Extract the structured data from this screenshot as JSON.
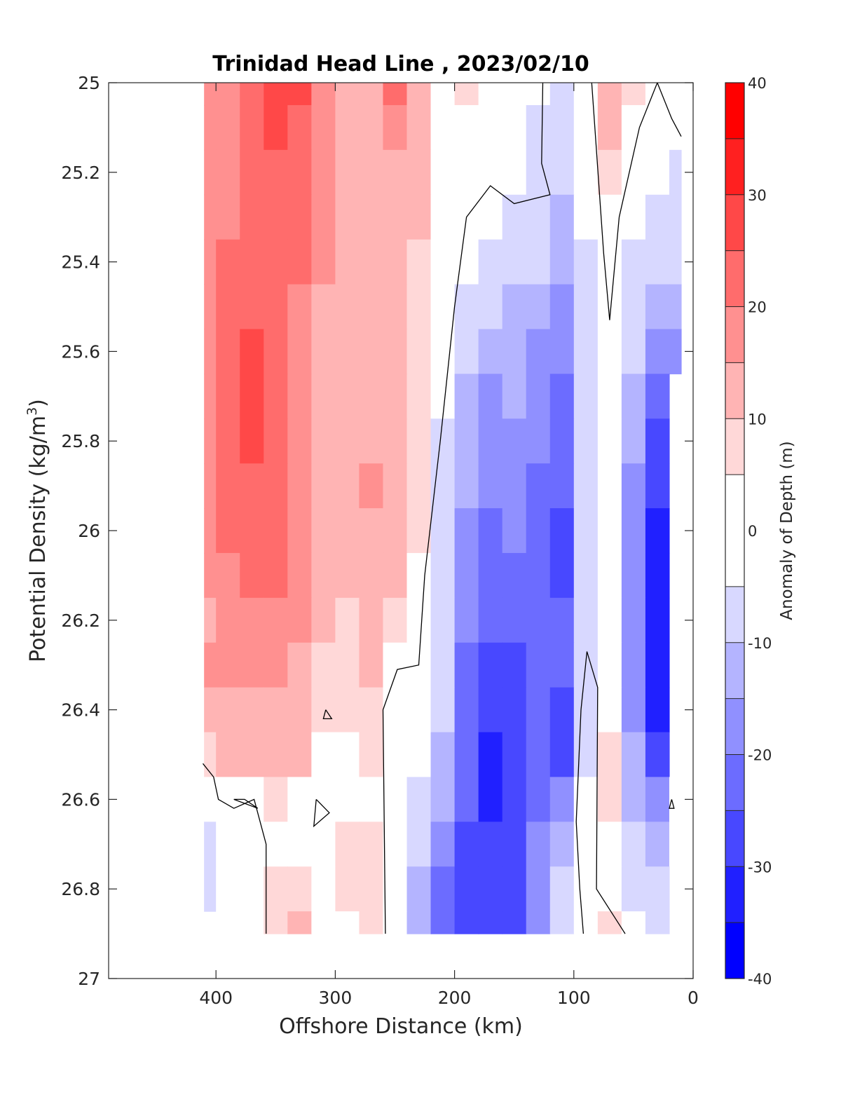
{
  "chart_data": {
    "type": "heatmap",
    "title": "Trinidad Head Line , 2023/02/10",
    "xlabel": "Offshore Distance (km)",
    "ylabel_base": "Potential Density (kg/m",
    "ylabel_sup": "3",
    "ylabel_end": ")",
    "colorbar_label": "Anomaly of Depth (m)",
    "x_range": [
      490,
      0
    ],
    "x_reversed": true,
    "y_range": [
      25,
      27
    ],
    "y_reversed": true,
    "x_ticks": [
      400,
      300,
      200,
      100,
      0
    ],
    "y_ticks": [
      25,
      25.2,
      25.4,
      25.6,
      25.8,
      26,
      26.2,
      26.4,
      26.6,
      26.8,
      27
    ],
    "colorbar_ticks": [
      40,
      30,
      20,
      10,
      0,
      -10,
      -20,
      -30,
      -40
    ],
    "colorbar_levels": [
      -40,
      -35,
      -30,
      -25,
      -20,
      -15,
      -10,
      -5,
      5,
      10,
      15,
      20,
      25,
      30,
      35,
      40
    ],
    "colorbar_colors": [
      "#0000ff",
      "#2020ff",
      "#4848ff",
      "#6c6cff",
      "#9090ff",
      "#b4b4ff",
      "#d8d8ff",
      "#ffffff",
      "#ffd8d8",
      "#ffb4b4",
      "#ff9090",
      "#ff6c6c",
      "#ff4848",
      "#ff2020",
      "#ff0000"
    ],
    "grid": false,
    "data_extent": {
      "x": [
        410,
        10
      ],
      "y": [
        25,
        26.9
      ]
    },
    "x": [
      410,
      390,
      370,
      350,
      330,
      310,
      290,
      270,
      250,
      230,
      210,
      190,
      170,
      150,
      130,
      110,
      90,
      70,
      50,
      30,
      10
    ],
    "y": [
      25.0,
      25.1,
      25.2,
      25.3,
      25.4,
      25.5,
      25.6,
      25.7,
      25.8,
      25.9,
      26.0,
      26.1,
      26.2,
      26.3,
      26.4,
      26.5,
      26.6,
      26.7,
      26.8,
      26.9
    ],
    "z": [
      [
        16,
        18,
        22,
        28,
        26,
        18,
        12,
        14,
        20,
        14,
        4,
        6,
        4,
        2,
        -5,
        -8,
        -2,
        14,
        6,
        2,
        null
      ],
      [
        16,
        18,
        22,
        26,
        24,
        18,
        12,
        14,
        18,
        14,
        4,
        4,
        4,
        -2,
        -6,
        -8,
        -2,
        12,
        4,
        -2,
        null
      ],
      [
        16,
        18,
        22,
        24,
        22,
        16,
        12,
        12,
        14,
        10,
        4,
        2,
        -2,
        -4,
        -6,
        -10,
        -2,
        8,
        2,
        -4,
        -6
      ],
      [
        16,
        18,
        20,
        22,
        20,
        16,
        12,
        14,
        12,
        10,
        4,
        -2,
        -4,
        -6,
        -8,
        -12,
        -4,
        4,
        -2,
        -6,
        -8
      ],
      [
        16,
        20,
        22,
        22,
        20,
        16,
        12,
        12,
        12,
        8,
        2,
        -4,
        -8,
        -10,
        -10,
        -14,
        -6,
        2,
        -6,
        -10,
        -10
      ],
      [
        16,
        22,
        24,
        22,
        18,
        14,
        12,
        12,
        12,
        8,
        -2,
        -6,
        -10,
        -12,
        -14,
        -16,
        -6,
        2,
        -8,
        -14,
        -12
      ],
      [
        16,
        22,
        26,
        22,
        18,
        12,
        10,
        12,
        12,
        6,
        -4,
        -10,
        -14,
        -12,
        -16,
        -20,
        -6,
        2,
        -10,
        -18,
        -16
      ],
      [
        16,
        22,
        26,
        22,
        18,
        12,
        10,
        12,
        12,
        6,
        -4,
        -12,
        -16,
        -14,
        -18,
        -22,
        -6,
        2,
        -12,
        -24,
        null
      ],
      [
        16,
        22,
        26,
        22,
        18,
        14,
        12,
        14,
        12,
        6,
        -6,
        -12,
        -18,
        -16,
        -20,
        -24,
        -6,
        2,
        -14,
        -28,
        null
      ],
      [
        16,
        22,
        24,
        22,
        18,
        14,
        12,
        16,
        12,
        6,
        -6,
        -14,
        -20,
        -18,
        -22,
        -24,
        -6,
        2,
        -16,
        -30,
        null
      ],
      [
        16,
        20,
        22,
        22,
        18,
        14,
        12,
        14,
        12,
        6,
        -6,
        -16,
        -22,
        -20,
        -24,
        -26,
        -6,
        2,
        -18,
        -34,
        null
      ],
      [
        16,
        18,
        20,
        20,
        18,
        14,
        12,
        12,
        10,
        2,
        -8,
        -18,
        -22,
        -22,
        -22,
        -26,
        -6,
        2,
        -18,
        -34,
        null
      ],
      [
        14,
        16,
        18,
        18,
        16,
        10,
        8,
        10,
        6,
        0,
        -8,
        -20,
        -24,
        -22,
        -22,
        -24,
        -6,
        2,
        -18,
        -34,
        null
      ],
      [
        16,
        18,
        16,
        16,
        14,
        8,
        8,
        10,
        4,
        -2,
        -8,
        -22,
        -26,
        -26,
        -22,
        -24,
        -6,
        -2,
        -18,
        -34,
        null
      ],
      [
        12,
        14,
        14,
        14,
        12,
        6,
        6,
        8,
        2,
        -2,
        -10,
        -24,
        -30,
        -30,
        -24,
        -26,
        -6,
        4,
        -16,
        -34,
        null
      ],
      [
        8,
        12,
        12,
        12,
        10,
        4,
        4,
        6,
        0,
        -4,
        -12,
        -24,
        -32,
        -30,
        -24,
        -26,
        -6,
        6,
        -14,
        -30,
        null
      ],
      [
        0,
        0,
        4,
        6,
        0,
        2,
        4,
        4,
        0,
        -6,
        -14,
        -24,
        -32,
        -28,
        -22,
        -18,
        -4,
        6,
        -12,
        -20,
        -2
      ],
      [
        -6,
        0,
        0,
        4,
        2,
        2,
        6,
        6,
        0,
        -8,
        -18,
        -26,
        -28,
        -26,
        -20,
        -12,
        0,
        2,
        -8,
        -14,
        -2
      ],
      [
        -6,
        0,
        0,
        8,
        8,
        4,
        6,
        8,
        0,
        -12,
        -22,
        -28,
        -30,
        -26,
        -18,
        -8,
        0,
        -2,
        -6,
        -10,
        null
      ],
      [
        null,
        0,
        0,
        8,
        10,
        2,
        4,
        8,
        0,
        -14,
        -24,
        -30,
        -30,
        -28,
        -16,
        -6,
        2,
        6,
        -4,
        -8,
        null
      ]
    ],
    "zero_contour": [
      [
        [
          85,
          25.0
        ],
        [
          75,
          25.38
        ],
        [
          70,
          25.53
        ],
        [
          62,
          25.3
        ],
        [
          45,
          25.1
        ],
        [
          30,
          25.0
        ],
        [
          18,
          25.08
        ],
        [
          10,
          25.12
        ]
      ],
      [
        [
          126,
          25.0
        ],
        [
          127,
          25.18
        ],
        [
          120,
          25.25
        ],
        [
          150,
          25.27
        ],
        [
          170,
          25.23
        ],
        [
          190,
          25.3
        ],
        [
          200,
          25.5
        ],
        [
          212,
          25.8
        ],
        [
          225,
          26.1
        ],
        [
          230,
          26.3
        ],
        [
          248,
          26.31
        ],
        [
          260,
          26.4
        ],
        [
          258,
          26.9
        ]
      ],
      [
        [
          92,
          26.9
        ],
        [
          95,
          26.8
        ],
        [
          98,
          26.65
        ],
        [
          94,
          26.4
        ],
        [
          89,
          26.27
        ],
        [
          80,
          26.35
        ],
        [
          81,
          26.8
        ],
        [
          57,
          26.9
        ]
      ],
      [
        [
          411,
          26.52
        ],
        [
          402,
          26.55
        ],
        [
          398,
          26.6
        ],
        [
          385,
          26.62
        ],
        [
          368,
          26.6
        ],
        [
          358,
          26.7
        ],
        [
          358,
          26.9
        ]
      ],
      [
        [
          316,
          26.6
        ],
        [
          305,
          26.63
        ],
        [
          318,
          26.66
        ],
        [
          316,
          26.6
        ]
      ],
      [
        [
          365,
          26.62
        ],
        [
          376,
          26.6
        ],
        [
          385,
          26.6
        ],
        [
          365,
          26.62
        ]
      ],
      [
        [
          308,
          26.4
        ],
        [
          303,
          26.42
        ],
        [
          310,
          26.42
        ],
        [
          308,
          26.4
        ]
      ],
      [
        [
          18,
          26.6
        ],
        [
          20,
          26.62
        ],
        [
          16,
          26.62
        ],
        [
          18,
          26.6
        ]
      ]
    ]
  }
}
